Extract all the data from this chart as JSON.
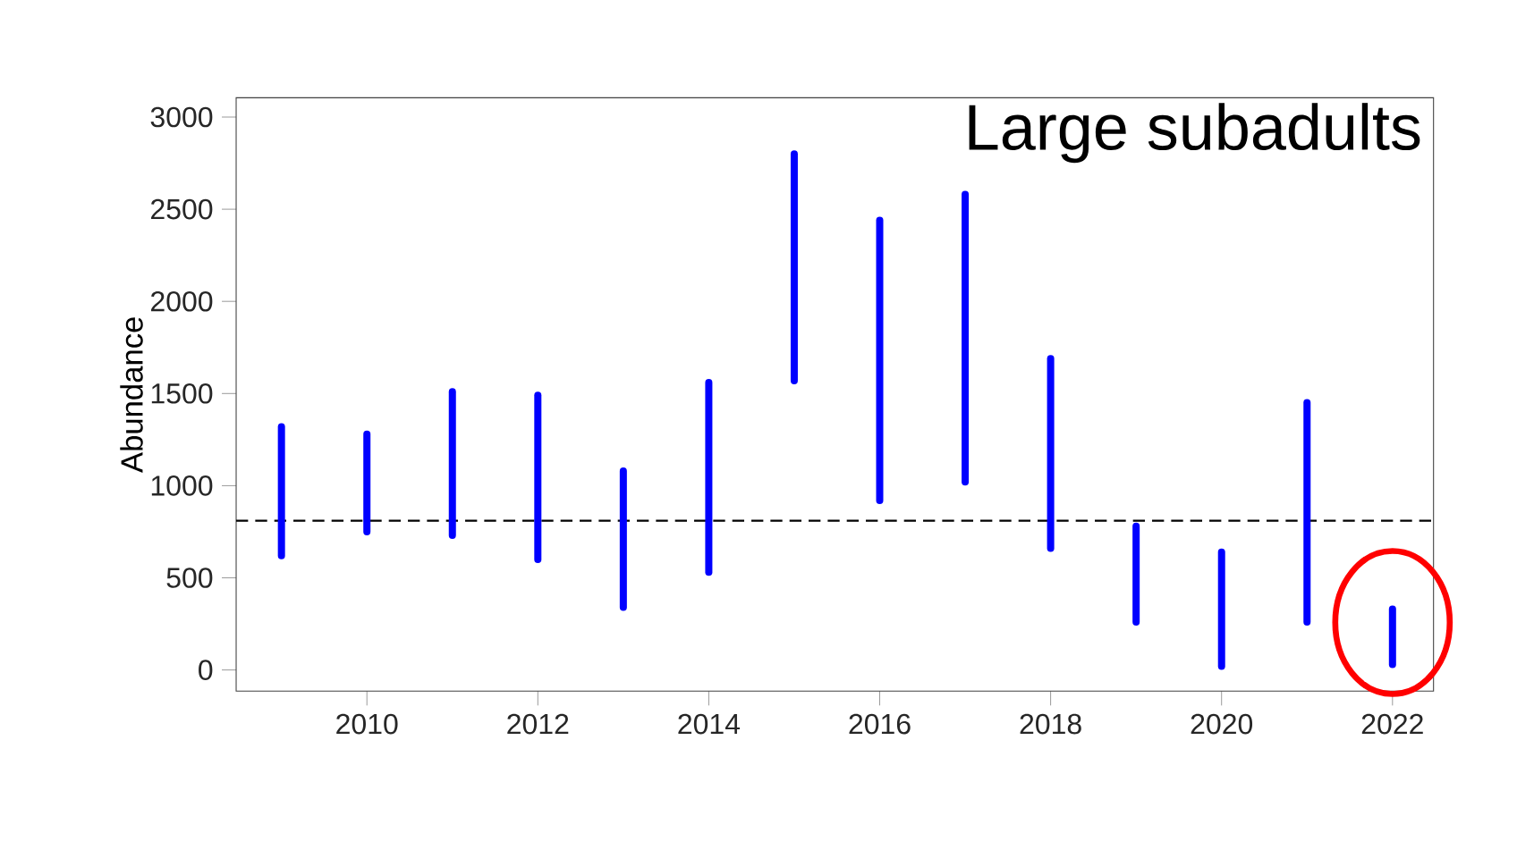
{
  "chart_data": {
    "type": "bar",
    "title": "Large subadults",
    "ylabel": "Abundance",
    "x": [
      2009,
      2010,
      2011,
      2012,
      2013,
      2014,
      2015,
      2016,
      2017,
      2018,
      2019,
      2020,
      2021,
      2022
    ],
    "base": [
      620,
      750,
      730,
      600,
      340,
      530,
      1570,
      920,
      1020,
      660,
      260,
      20,
      260,
      30
    ],
    "values": [
      700,
      530,
      780,
      890,
      740,
      1030,
      1230,
      1520,
      1560,
      1030,
      520,
      620,
      1190,
      300
    ],
    "color": "#0000ff",
    "xlim": [
      2008.47,
      2022.48
    ],
    "ylim": [
      -115,
      3105
    ],
    "xticks": [
      2010,
      2012,
      2014,
      2016,
      2018,
      2020,
      2022
    ],
    "yticks": [
      0,
      500,
      1000,
      1500,
      2000,
      2500,
      3000
    ],
    "ref_lines": [
      {
        "axis": "y",
        "value": 810,
        "line_style": "dashed",
        "color": "#000000"
      }
    ],
    "grid": false
  }
}
